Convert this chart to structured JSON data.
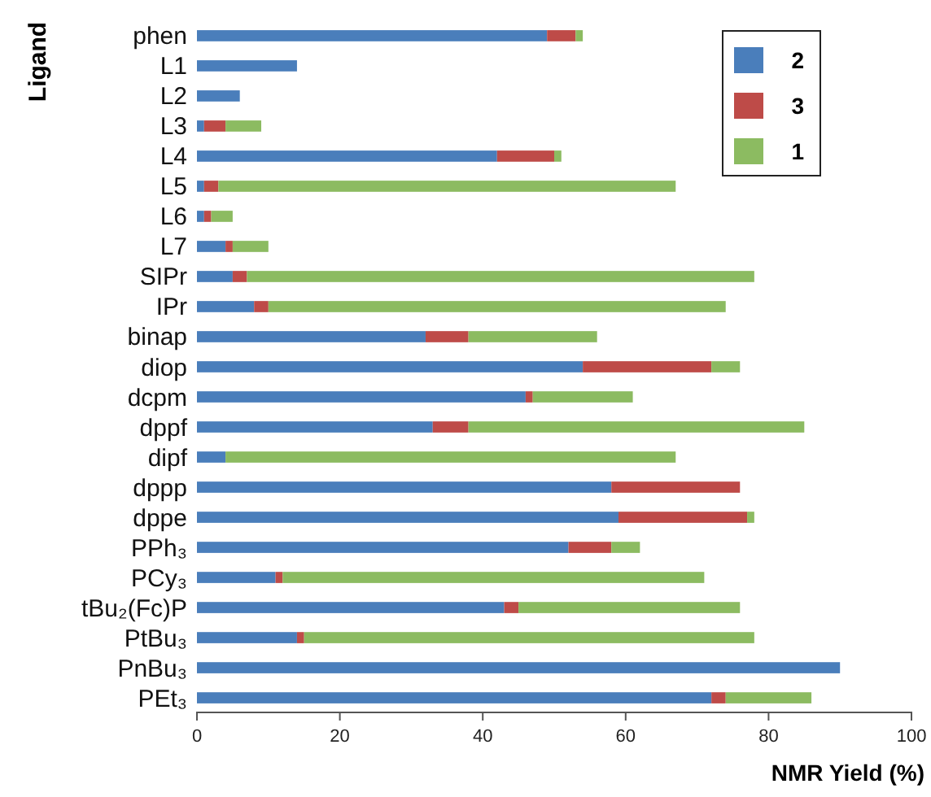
{
  "chart_data": {
    "type": "bar",
    "orientation": "horizontal",
    "stacked": true,
    "xlabel": "NMR Yield (%)",
    "ylabel": "Ligand",
    "categories": [
      "phen",
      "L1",
      "L2",
      "L3",
      "L4",
      "L5",
      "L6",
      "L7",
      "SIPr",
      "IPr",
      "binap",
      "diop",
      "dcpm",
      "dppf",
      "dipf",
      "dppp",
      "dppe",
      "PPh₃",
      "PCy₃",
      "tBu₂(Fc)P",
      "PtBu₃",
      "PnBu₃",
      "PEt₃"
    ],
    "series": [
      {
        "name": "2",
        "color": "#4a7ebb",
        "values": [
          49,
          14,
          6,
          1,
          42,
          1,
          1,
          4,
          5,
          8,
          32,
          54,
          46,
          33,
          4,
          58,
          59,
          52,
          11,
          43,
          14,
          90,
          72
        ]
      },
      {
        "name": "3",
        "color": "#be4b48",
        "values": [
          4,
          0,
          0,
          3,
          8,
          2,
          1,
          1,
          2,
          2,
          6,
          18,
          1,
          5,
          0,
          18,
          18,
          6,
          1,
          2,
          1,
          0,
          2
        ]
      },
      {
        "name": "1",
        "color": "#8cbb61",
        "values": [
          1,
          0,
          0,
          5,
          1,
          64,
          3,
          5,
          71,
          64,
          18,
          4,
          14,
          47,
          63,
          0,
          1,
          4,
          59,
          31,
          63,
          0,
          12
        ]
      }
    ],
    "xlim": [
      0,
      100
    ],
    "xticks": [
      0,
      20,
      40,
      60,
      80,
      100
    ],
    "legend": "top right",
    "grid": false
  }
}
